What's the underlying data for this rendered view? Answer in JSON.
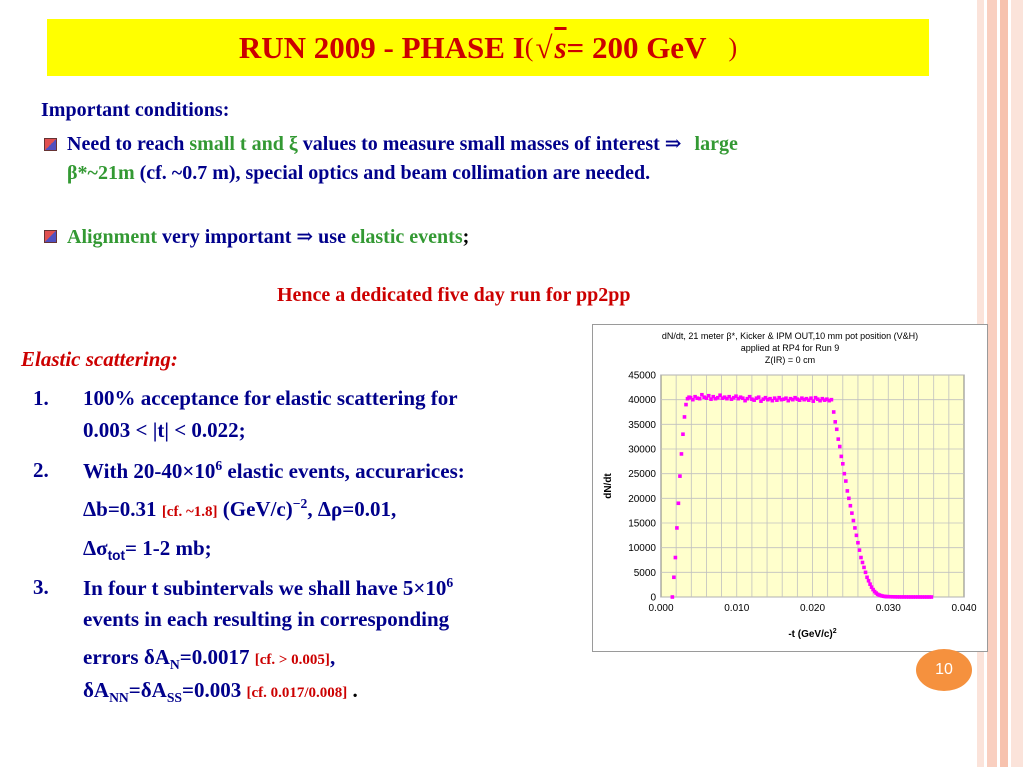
{
  "title": {
    "prefix": "RUN 2009 - PHASE I",
    "open": "(",
    "sqrt": "√",
    "s": "s",
    "eq": " = 200 GeV",
    "close": ")"
  },
  "conditions": {
    "heading": "Important conditions:",
    "b1_a": "Need to reach ",
    "b1_b": "small t and ξ",
    "b1_c": " values to measure small masses of interest ⇒ ",
    "b1_d": "large",
    "b1_e": "β*~21m",
    "b1_f": " (cf. ~0.7 m), special optics and beam collimation are needed.",
    "b2_a": "Alignment",
    "b2_b": " very important ⇒ use ",
    "b2_c": "elastic events",
    "b2_d": ";"
  },
  "hence": "Hence a dedicated five day run for pp2pp",
  "elastic": {
    "heading": "Elastic scattering:",
    "n1": "1.",
    "i1_l1": "100% acceptance for elastic scattering for",
    "i1_l2": "0.003 < |t| <  0.022;",
    "n2": "2.",
    "i2_a": "With 20-40×10",
    "i2_sup": "6",
    "i2_b": " elastic events, accurarices:",
    "i2_l2_a": "Δb=0.31 ",
    "i2_l2_cf": "[cf. ~1.8]",
    "i2_l2_b": " (GeV/c)",
    "i2_l2_sup": "−2",
    "i2_l2_c": ",  Δρ=0.01,",
    "i2_l3_a": "Δσ",
    "i2_l3_sub": "tot",
    "i2_l3_b": "= 1-2 mb;",
    "n3": "3.",
    "i3_l1_a": "In four t subintervals we shall have 5×10",
    "i3_l1_sup": "6",
    "i3_l2": "events in each resulting in corresponding",
    "i3_l3_a": "errors δA",
    "i3_l3_sub": "N",
    "i3_l3_b": "=0.0017 ",
    "i3_l3_cf": "[cf. > 0.005]",
    "i3_l3_c": ",",
    "i3_l4_a": "δA",
    "i3_l4_sub1": "NN",
    "i3_l4_b": "=δA",
    "i3_l4_sub2": "SS",
    "i3_l4_c": "=0.003 ",
    "i3_l4_cf": "[cf. 0.017/0.008]",
    "i3_l4_d": " ."
  },
  "page_number": "10",
  "colors": {
    "title_bg": "#ffff00",
    "title_text": "#cc0000",
    "body_text": "#00008b",
    "green": "#339933",
    "red": "#cc0000",
    "plot_bg": "#ffffcc",
    "marker": "#ff00ff",
    "badge": "#f5913e"
  },
  "chart_data": {
    "type": "scatter",
    "title_lines": [
      "dN/dt, 21 meter β*, Kicker & IPM OUT,10 mm pot position (V&H)",
      "applied at RP4 for Run 9",
      "Z(IR) = 0 cm"
    ],
    "xlabel": "-t (GeV/c)",
    "xlabel_sup": "2",
    "ylabel": "dN/dt",
    "xlim": [
      0,
      0.04
    ],
    "ylim": [
      0,
      45000
    ],
    "xticks": [
      "0.000",
      "0.010",
      "0.020",
      "0.030",
      "0.040"
    ],
    "yticks": [
      "0",
      "5000",
      "10000",
      "15000",
      "20000",
      "25000",
      "30000",
      "35000",
      "40000",
      "45000"
    ],
    "grid": true,
    "series": [
      {
        "x": [
          0.0015,
          0.0017,
          0.0019,
          0.0021,
          0.0023,
          0.0025,
          0.0027,
          0.0029,
          0.0031,
          0.0033,
          0.0035,
          0.0037,
          0.0039,
          0.0042,
          0.0045,
          0.0048,
          0.0051,
          0.0054,
          0.0057,
          0.006,
          0.0063,
          0.0066,
          0.0069,
          0.0072,
          0.0075,
          0.0078,
          0.0081,
          0.0084,
          0.0087,
          0.009,
          0.0093,
          0.0096,
          0.0099,
          0.0102,
          0.0105,
          0.0108,
          0.0111,
          0.0114,
          0.0117,
          0.012,
          0.0123,
          0.0126,
          0.0129,
          0.0132,
          0.0135,
          0.0138,
          0.0141,
          0.0144,
          0.0147,
          0.015,
          0.0153,
          0.0156,
          0.0159,
          0.0162,
          0.0165,
          0.0168,
          0.0171,
          0.0174,
          0.0177,
          0.018,
          0.0183,
          0.0186,
          0.0189,
          0.0192,
          0.0195,
          0.0198,
          0.0201,
          0.0204,
          0.0207,
          0.021,
          0.0213,
          0.0216,
          0.0219,
          0.0222,
          0.0225,
          0.0228,
          0.023,
          0.0232,
          0.0234,
          0.0236,
          0.0238,
          0.024,
          0.0242,
          0.0244,
          0.0246,
          0.0248,
          0.025,
          0.0252,
          0.0254,
          0.0256,
          0.0258,
          0.026,
          0.0262,
          0.0264,
          0.0266,
          0.0268,
          0.027,
          0.0272,
          0.0274,
          0.0276,
          0.0278,
          0.028,
          0.0282,
          0.0284,
          0.0286,
          0.0288,
          0.029,
          0.0292,
          0.0294,
          0.0296,
          0.0298,
          0.03,
          0.0303,
          0.0306,
          0.0309,
          0.0312,
          0.0315,
          0.0318,
          0.0321,
          0.0324,
          0.0327,
          0.033,
          0.0333,
          0.0336,
          0.0339,
          0.0342,
          0.0345,
          0.0348,
          0.0351,
          0.0354,
          0.0357
        ],
        "y": [
          0,
          4000,
          8000,
          14000,
          19000,
          24500,
          29000,
          33000,
          36500,
          39000,
          40200,
          40500,
          40400,
          40000,
          40600,
          40300,
          40200,
          41000,
          40500,
          40300,
          40800,
          40100,
          40600,
          40200,
          40400,
          40900,
          40300,
          40500,
          40200,
          40600,
          40100,
          40400,
          40700,
          40200,
          40500,
          40300,
          39800,
          40200,
          40600,
          40100,
          39900,
          40300,
          40500,
          39700,
          40100,
          40400,
          40000,
          40200,
          39800,
          40300,
          39900,
          40400,
          40000,
          40100,
          40300,
          39800,
          40200,
          40000,
          40400,
          40100,
          39900,
          40300,
          40000,
          40200,
          39900,
          40300,
          39700,
          40400,
          40100,
          39800,
          40200,
          39900,
          40100,
          39800,
          40000,
          37500,
          35500,
          34000,
          32000,
          30500,
          28500,
          27000,
          25000,
          23500,
          21500,
          20000,
          18500,
          17000,
          15500,
          14000,
          12500,
          11000,
          9500,
          8000,
          7000,
          6000,
          5000,
          4000,
          3300,
          2600,
          2000,
          1500,
          1100,
          800,
          550,
          400,
          300,
          200,
          150,
          100,
          80,
          60,
          50,
          40,
          30,
          20,
          15,
          10,
          10,
          10,
          5,
          5,
          5,
          5,
          5,
          0,
          0,
          0,
          0,
          0,
          0
        ]
      }
    ]
  }
}
